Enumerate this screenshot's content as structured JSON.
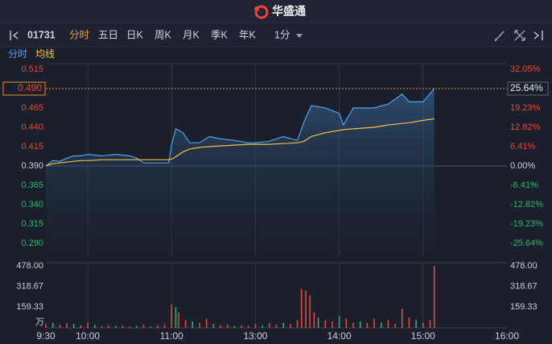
{
  "header": {
    "title": "华盛通"
  },
  "toolbar": {
    "code": "01731",
    "tabs": [
      "分时",
      "五日",
      "日K",
      "周K",
      "月K",
      "季K",
      "年K"
    ],
    "active": 0,
    "interval": "1分"
  },
  "chart_data": {
    "type": "line",
    "grid": true,
    "xlim": [
      0,
      330
    ],
    "xticks": [
      {
        "value": 0,
        "label": "9:30"
      },
      {
        "value": 30,
        "label": "10:00"
      },
      {
        "value": 90,
        "label": "11:00"
      },
      {
        "value": 150,
        "label": "13:00"
      },
      {
        "value": 210,
        "label": "14:00"
      },
      {
        "value": 270,
        "label": "15:00"
      },
      {
        "value": 330,
        "label": "16:00"
      }
    ],
    "ylim": [
      0.2733,
      0.5213
    ],
    "yticks": [
      {
        "value": 0.515,
        "label": "0.515"
      },
      {
        "value": 0.465,
        "label": "0.465"
      },
      {
        "value": 0.44,
        "label": "0.440"
      },
      {
        "value": 0.415,
        "label": "0.415"
      },
      {
        "value": 0.39,
        "label": "0.390"
      },
      {
        "value": 0.365,
        "label": "0.365"
      },
      {
        "value": 0.34,
        "label": "0.340"
      },
      {
        "value": 0.315,
        "label": "0.315"
      },
      {
        "value": 0.29,
        "label": "0.290"
      }
    ],
    "y2lim": [
      -29.92,
      33.67
    ],
    "y2ticks": [
      {
        "value": 32.05,
        "label": "32.05%"
      },
      {
        "value": 19.23,
        "label": "19.23%"
      },
      {
        "value": 12.82,
        "label": "12.82%"
      },
      {
        "value": 6.41,
        "label": "6.41%"
      },
      {
        "value": 0,
        "label": "0.00%"
      },
      {
        "value": -6.41,
        "label": "-6.41%"
      },
      {
        "value": -12.82,
        "label": "-12.82%"
      },
      {
        "value": -19.23,
        "label": "-19.23%"
      },
      {
        "value": -25.64,
        "label": "-25.64%"
      }
    ],
    "base_line": 0.39,
    "up_color": "#e8453c",
    "down_color": "#2fb36b",
    "flat_color": "#c8ccd4",
    "current": {
      "value": 0.49,
      "label": "0.490",
      "pct": 25.64,
      "pct_label": "25.64%",
      "color": "#e8892c"
    },
    "x": [
      0,
      5,
      10,
      15,
      20,
      25,
      30,
      40,
      50,
      60,
      65,
      70,
      80,
      88,
      90,
      93,
      98,
      103,
      110,
      117,
      125,
      135,
      145,
      150,
      160,
      170,
      180,
      185,
      190,
      200,
      210,
      213,
      220,
      235,
      245,
      255,
      260,
      270,
      278
    ],
    "series": [
      {
        "name": "分时",
        "color": "#4da3f0",
        "values": [
          0.39,
          0.397,
          0.396,
          0.4,
          0.403,
          0.403,
          0.405,
          0.403,
          0.405,
          0.403,
          0.4,
          0.394,
          0.394,
          0.394,
          0.418,
          0.438,
          0.433,
          0.42,
          0.42,
          0.428,
          0.425,
          0.423,
          0.42,
          0.42,
          0.422,
          0.428,
          0.423,
          0.448,
          0.468,
          0.465,
          0.458,
          0.443,
          0.465,
          0.465,
          0.47,
          0.483,
          0.473,
          0.473,
          0.49
        ]
      },
      {
        "name": "均线",
        "color": "#f0c040",
        "values": [
          0.39,
          0.393,
          0.394,
          0.395,
          0.396,
          0.397,
          0.397,
          0.398,
          0.398,
          0.398,
          0.398,
          0.398,
          0.398,
          0.398,
          0.399,
          0.402,
          0.408,
          0.412,
          0.414,
          0.415,
          0.416,
          0.417,
          0.418,
          0.418,
          0.418,
          0.419,
          0.42,
          0.422,
          0.428,
          0.433,
          0.436,
          0.437,
          0.438,
          0.44,
          0.443,
          0.445,
          0.446,
          0.449,
          0.451
        ]
      }
    ],
    "volume": {
      "ylim": [
        0,
        478
      ],
      "yticks": [
        {
          "value": 478,
          "label": "478.00"
        },
        {
          "value": 318.67,
          "label": "318.67"
        },
        159.33
      ],
      "unit": "万",
      "x": [
        0,
        5,
        10,
        15,
        20,
        25,
        30,
        35,
        40,
        45,
        50,
        55,
        60,
        65,
        70,
        75,
        80,
        85,
        90,
        93,
        95,
        100,
        105,
        110,
        115,
        120,
        125,
        130,
        135,
        140,
        145,
        150,
        155,
        160,
        165,
        170,
        175,
        180,
        183,
        186,
        189,
        192,
        195,
        200,
        205,
        210,
        215,
        220,
        225,
        230,
        235,
        240,
        245,
        250,
        255,
        260,
        265,
        270,
        275,
        278
      ],
      "values": [
        30,
        40,
        25,
        35,
        30,
        20,
        40,
        25,
        15,
        20,
        15,
        20,
        10,
        15,
        25,
        10,
        20,
        25,
        180,
        160,
        120,
        60,
        50,
        40,
        70,
        30,
        20,
        25,
        15,
        20,
        15,
        30,
        20,
        35,
        25,
        40,
        30,
        60,
        300,
        290,
        250,
        120,
        80,
        60,
        50,
        90,
        70,
        40,
        50,
        40,
        70,
        40,
        60,
        30,
        150,
        80,
        60,
        40,
        60,
        478
      ],
      "colors": [
        "#e8453c",
        "#2fb36b",
        "#e8453c",
        "#e8453c",
        "#2fb36b",
        "#e8453c",
        "#e8453c",
        "#2fb36b",
        "#e8453c",
        "#e8453c",
        "#2fb36b",
        "#e8453c",
        "#e8453c",
        "#2fb36b",
        "#e8453c",
        "#2fb36b",
        "#e8453c",
        "#e8453c",
        "#e8453c",
        "#2fb36b",
        "#e8453c",
        "#e8453c",
        "#2fb36b",
        "#e8453c",
        "#e8453c",
        "#2fb36b",
        "#e8453c",
        "#e8453c",
        "#2fb36b",
        "#e8453c",
        "#e8453c",
        "#e8453c",
        "#2fb36b",
        "#e8453c",
        "#e8453c",
        "#2fb36b",
        "#e8453c",
        "#e8453c",
        "#e8453c",
        "#e8453c",
        "#e8453c",
        "#e8453c",
        "#2fb36b",
        "#e8453c",
        "#e8453c",
        "#2fb36b",
        "#e8453c",
        "#e8453c",
        "#2fb36b",
        "#e8453c",
        "#e8453c",
        "#2fb36b",
        "#e8453c",
        "#e8453c",
        "#e8453c",
        "#e8453c",
        "#2fb36b",
        "#e8453c",
        "#e8453c",
        "#e8453c"
      ]
    }
  }
}
